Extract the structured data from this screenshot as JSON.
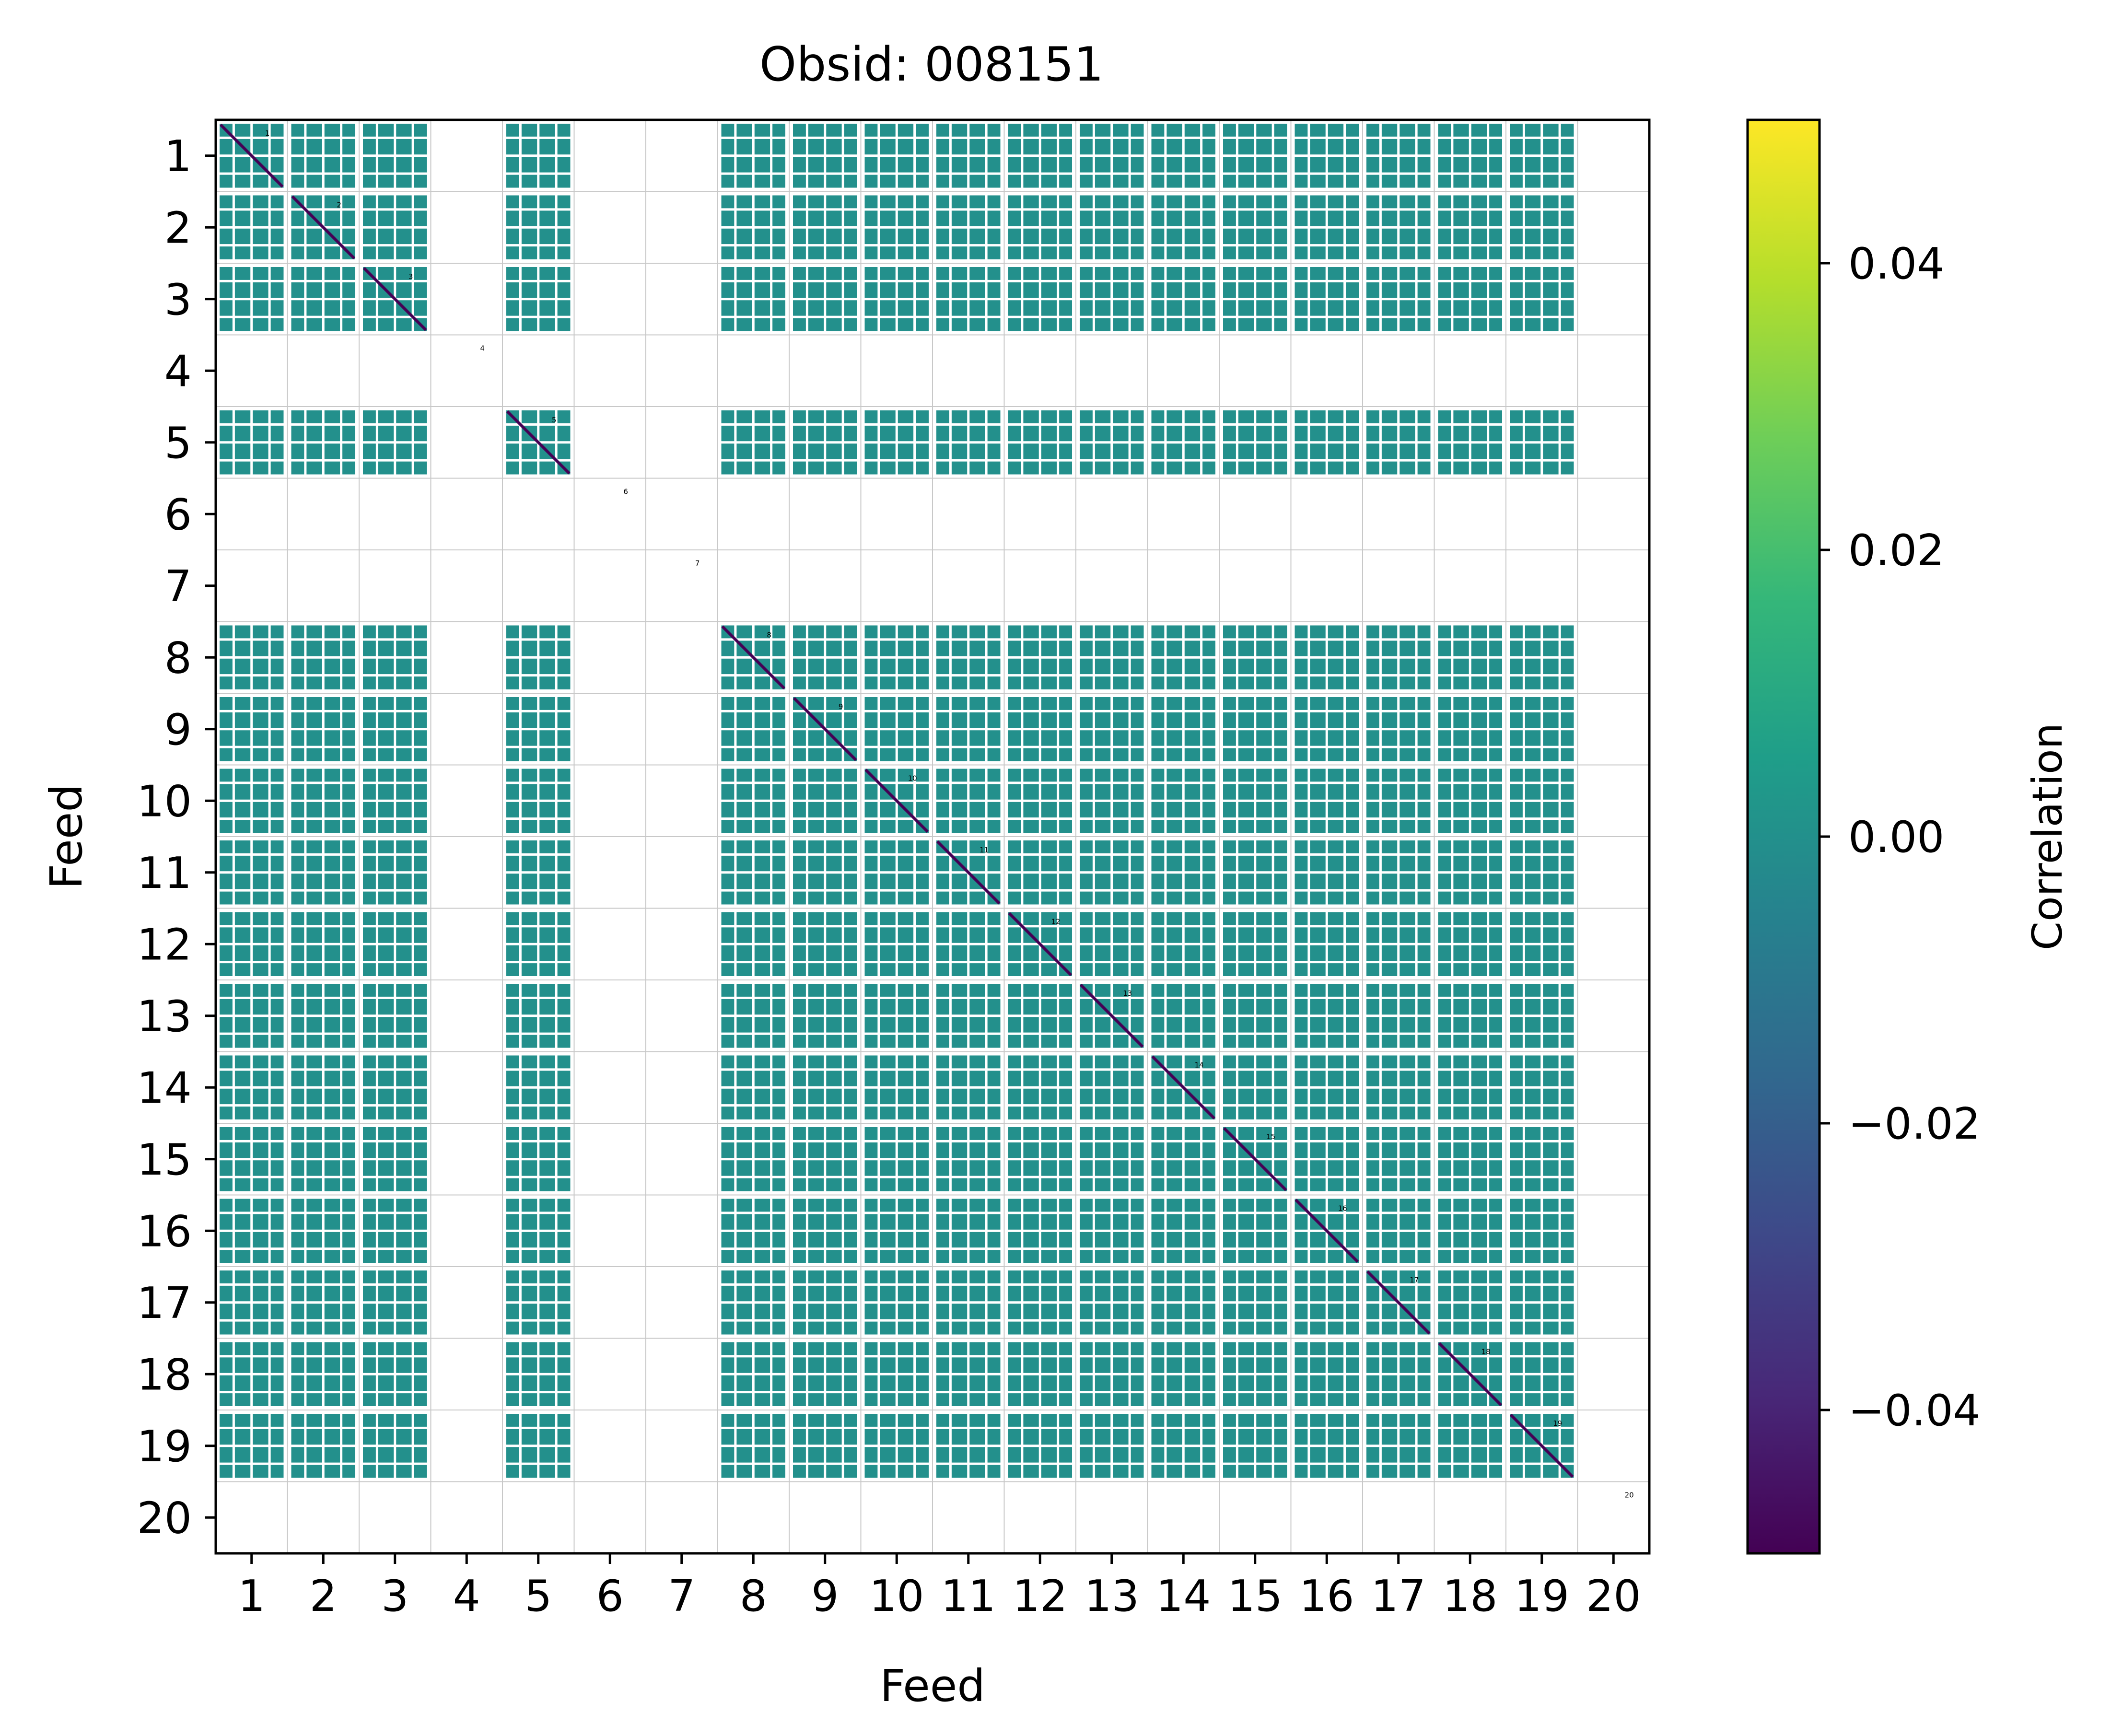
{
  "chart_data": {
    "type": "heatmap",
    "title": "Obsid: 008151",
    "xlabel": "Feed",
    "ylabel": "Feed",
    "x_tick_labels": [
      "1",
      "2",
      "3",
      "4",
      "5",
      "6",
      "7",
      "8",
      "9",
      "10",
      "11",
      "12",
      "13",
      "14",
      "15",
      "16",
      "17",
      "18",
      "19",
      "20"
    ],
    "y_tick_labels": [
      "1",
      "2",
      "3",
      "4",
      "5",
      "6",
      "7",
      "8",
      "9",
      "10",
      "11",
      "12",
      "13",
      "14",
      "15",
      "16",
      "17",
      "18",
      "19",
      "20"
    ],
    "diagonal_labels": [
      "1",
      "2",
      "3",
      "4",
      "5",
      "6",
      "7",
      "8",
      "9",
      "10",
      "11",
      "12",
      "13",
      "14",
      "15",
      "16",
      "17",
      "18",
      "19",
      "20"
    ],
    "feeds_with_data": [
      1,
      2,
      3,
      5,
      8,
      9,
      10,
      11,
      12,
      13,
      14,
      15,
      16,
      17,
      18,
      19
    ],
    "feeds_without_data": [
      4,
      6,
      7,
      20
    ],
    "off_diagonal_value": 0.0,
    "diagonal_value": -0.05,
    "grid": true,
    "colorbar": {
      "label": "Correlation",
      "vmin": -0.05,
      "vmax": 0.05,
      "ticks": [
        -0.04,
        -0.02,
        0.0,
        0.02,
        0.04
      ],
      "tick_labels": [
        "−0.04",
        "−0.02",
        "0.00",
        "0.02",
        "0.04"
      ],
      "colormap": "viridis"
    },
    "colors": {
      "zero": "#21918c",
      "diagonal": "#440154",
      "viridis_stops": [
        "#440154",
        "#482878",
        "#3e4989",
        "#31688e",
        "#26828e",
        "#1f9e89",
        "#35b779",
        "#6ece58",
        "#b5de2b",
        "#fde725"
      ]
    }
  }
}
